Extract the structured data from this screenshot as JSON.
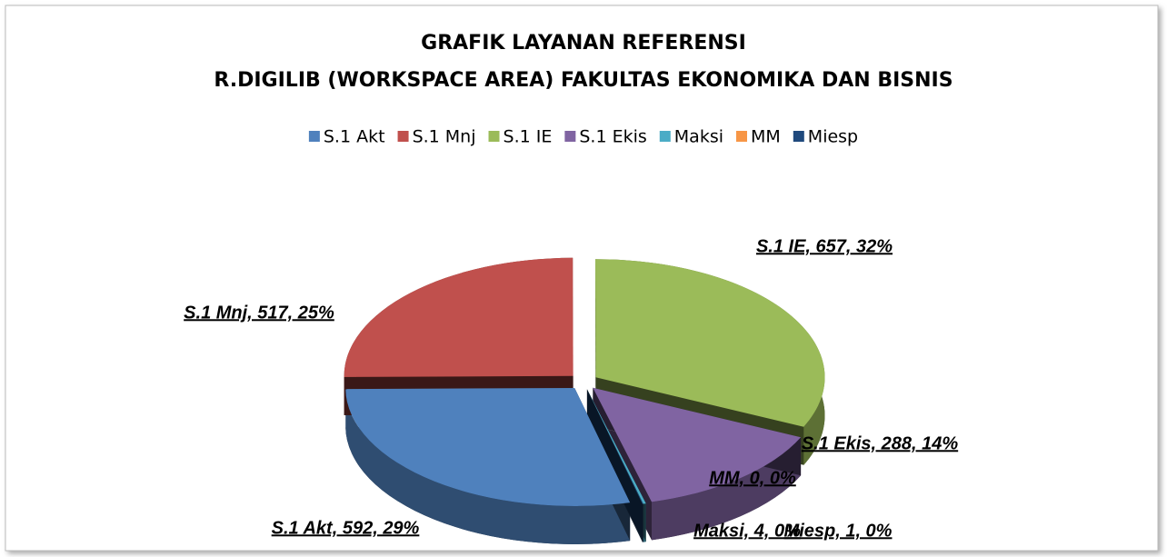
{
  "chart_data": {
    "type": "pie",
    "title": "GRAFIK LAYANAN REFERENSI",
    "subtitle": "R.DIGILIB (WORKSPACE AREA) FAKULTAS EKONOMIKA DAN BISNIS",
    "categories": [
      "S.1 Akt",
      "S.1 Mnj",
      "S.1 IE",
      "S.1 Ekis",
      "Maksi",
      "MM",
      "Miesp"
    ],
    "values": [
      592,
      517,
      657,
      288,
      4,
      0,
      1
    ],
    "value_labels": [
      "S.1 Akt, 592, 29%",
      "S.1 Mnj, 517, 25%",
      "S.1 IE, 657, 32%",
      "S.1 Ekis, 288, 14%",
      "Maksi, 4, 0%",
      "MM, 0, 0%",
      "Miesp, 1, 0%"
    ],
    "colors": [
      "#4f81bd",
      "#c0504d",
      "#9bbb59",
      "#8064a2",
      "#4bacc6",
      "#f79646",
      "#1f497d"
    ],
    "legend": "top"
  }
}
